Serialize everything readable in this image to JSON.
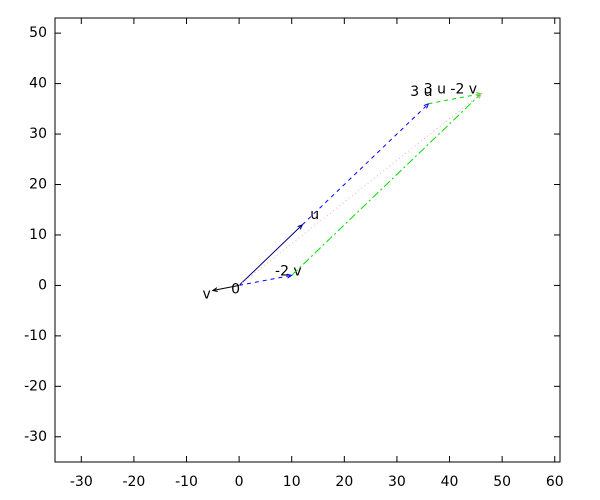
{
  "chart_data": {
    "type": "vector",
    "xlim": [
      -35,
      61
    ],
    "ylim": [
      -35,
      53
    ],
    "xticks": [
      -30,
      -20,
      -10,
      0,
      10,
      20,
      30,
      40,
      50,
      60
    ],
    "yticks": [
      -30,
      -20,
      -10,
      0,
      10,
      20,
      30,
      40,
      50
    ],
    "grid": false,
    "points": [
      {
        "label": "0",
        "x": 0,
        "y": 0
      }
    ],
    "vectors": [
      {
        "label": "u",
        "x0": 0,
        "y0": 0,
        "x1": 12,
        "y1": 12,
        "color": "#000080",
        "style": "solid"
      },
      {
        "label": "v",
        "x0": 0,
        "y0": 0,
        "x1": -5,
        "y1": -1,
        "color": "#000000",
        "style": "solid"
      },
      {
        "label": "3 u",
        "x0": 12,
        "y0": 12,
        "x1": 36,
        "y1": 36,
        "color": "#0000ff",
        "style": "dashed"
      },
      {
        "label": "-2 v",
        "x0": 0,
        "y0": 0,
        "x1": 10,
        "y1": 2,
        "color": "#0000ff",
        "style": "dashed"
      },
      {
        "label": "3 u -2 v",
        "x0": 36,
        "y0": 36,
        "x1": 46,
        "y1": 38,
        "color": "#00dd00",
        "style": "dashed"
      },
      {
        "x0": 10,
        "y0": 2,
        "x1": 46,
        "y1": 38,
        "color": "#00dd00",
        "style": "dashdot"
      },
      {
        "x0": 0,
        "y0": 0,
        "x1": 46,
        "y1": 38,
        "color": "#ffaaaa",
        "style": "dotted"
      }
    ]
  }
}
